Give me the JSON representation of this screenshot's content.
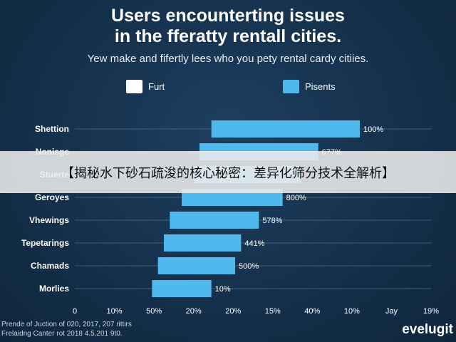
{
  "colors": {
    "background": "#142f4a",
    "bar": "#4fb8ec",
    "legend_furt": "#ffffff",
    "legend_pisents": "#4fb8ec"
  },
  "chart_data": {
    "type": "bar",
    "orientation": "horizontal",
    "title_line1": "Users encounterting issues",
    "title_line2": "in the fferatty rentall cities.",
    "subtitle": "Yew make and fifertly lees who you pety rental cardy citiies.",
    "legend": [
      "Furt",
      "Pisents"
    ],
    "legend_placement": "top",
    "categories": [
      "Shettion",
      "Nonisge",
      "Stuerte",
      "Geroyes",
      "Vhewings",
      "Tepetarings",
      "Chamads",
      "Morlies"
    ],
    "series": [
      {
        "name": "Pisents",
        "start": [
          23,
          21,
          20,
          18,
          16,
          15,
          14,
          13
        ],
        "end": [
          48,
          41,
          38,
          35,
          31,
          28,
          27,
          23
        ],
        "labels": [
          "100%",
          "677%",
          "",
          "800%",
          "578%",
          "441%",
          "500%",
          "10%"
        ]
      }
    ],
    "x_ticks": [
      "0",
      "10%",
      "50%",
      "20%",
      "20%",
      "15%",
      "40%",
      "10%",
      "Jay",
      "19%"
    ],
    "xlim": [
      0,
      60
    ],
    "grid": "horizontal"
  },
  "footer": {
    "line1": "Prende of Juction of 020, 2017, 207 rittirs",
    "line2": "Frelaidng Canter rot 2018 4.5,201 9t0."
  },
  "brand": "evelugit",
  "banner": {
    "text": "【揭秘水下砂石疏浚的核心秘密：差异化筛分技术全解析】"
  }
}
